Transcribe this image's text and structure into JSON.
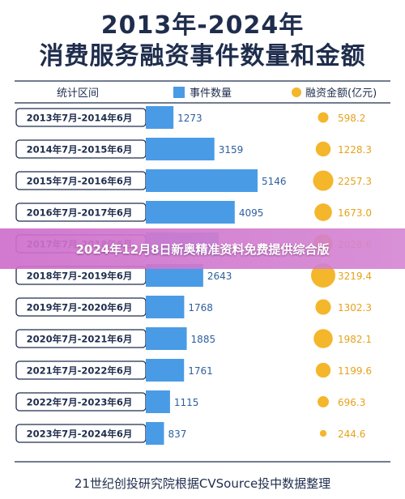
{
  "title_line1": "2013年-2024年",
  "title_line2": "消费服务融资事件数量和金额",
  "banner": "2024年12月8日新奥精准资料免费提供综合版",
  "footer": "21世纪创投研究院根据CVSource投中数据整理",
  "colors": {
    "navy": "#1f2d4d",
    "bar": "#4a9be6",
    "bubble": "#f4b62b",
    "amount_text": "#e6a21c",
    "count_text": "#2e5f9e",
    "row_pill_border": "#1f2d4d"
  },
  "chart_data": {
    "type": "bar",
    "title": "2013年-2024年 消费服务融资事件数量和金额",
    "category_header": "统计区间",
    "categories": [
      "2013年7月-2014年6月",
      "2014年7月-2015年6月",
      "2015年7月-2016年6月",
      "2016年7月-2017年6月",
      "2017年7月-2018年6月",
      "2018年7月-2019年6月",
      "2019年7月-2020年6月",
      "2020年7月-2021年6月",
      "2021年7月-2022年6月",
      "2022年7月-2023年6月",
      "2023年7月-2024年6月"
    ],
    "series": [
      {
        "name": "事件数量",
        "kind": "bar",
        "values": [
          1273,
          3159,
          5146,
          4095,
          null,
          2643,
          1768,
          1885,
          1761,
          1115,
          837
        ],
        "labels": [
          "1273",
          "3159",
          "5146",
          "4095",
          "",
          "2643",
          "1768",
          "1885",
          "1761",
          "1115",
          "837"
        ]
      },
      {
        "name": "融资金额(亿元)",
        "kind": "bubble",
        "values": [
          598.2,
          1228.3,
          2257.3,
          1673.0,
          2028.6,
          3219.4,
          1302.3,
          1982.1,
          1199.6,
          696.3,
          244.6
        ],
        "labels": [
          "598.2",
          "1228.3",
          "2257.3",
          "1673.0",
          "2028.6",
          "3219.4",
          "1302.3",
          "1982.1",
          "1199.6",
          "696.3",
          "244.6"
        ]
      }
    ],
    "legend": "top"
  }
}
